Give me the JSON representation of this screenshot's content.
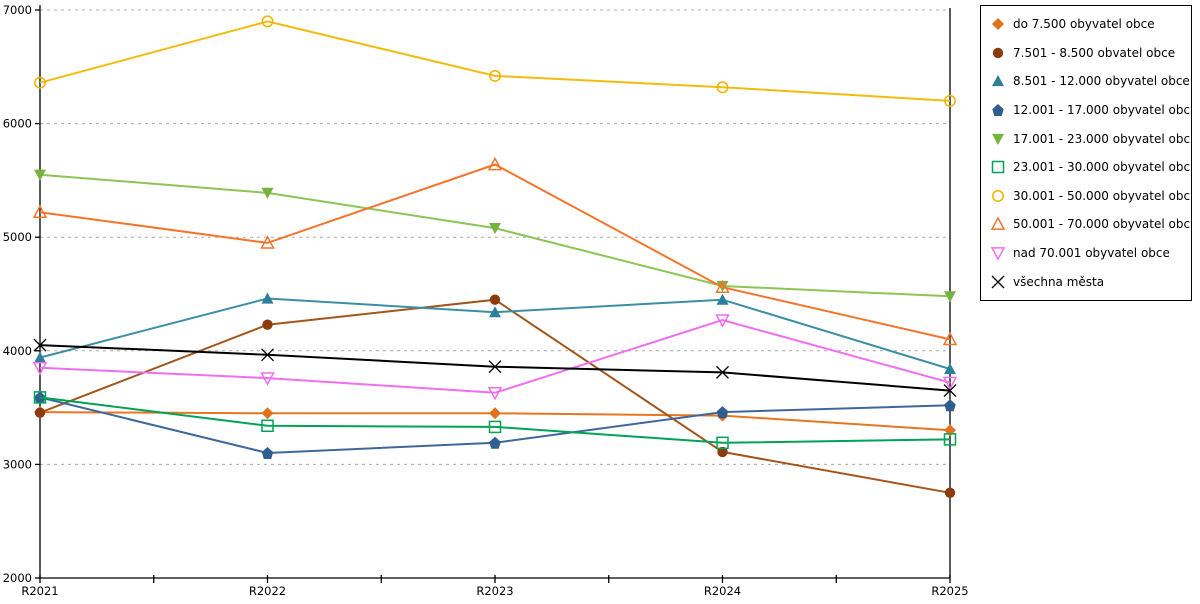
{
  "chart_data": {
    "type": "line",
    "title": "",
    "xlabel": "",
    "ylabel": "",
    "ylim": [
      2000,
      7000
    ],
    "ytick_step": 1000,
    "yticks": [
      "7000",
      "6000",
      "5000",
      "4000",
      "3000",
      "2000"
    ],
    "grid": "horizontal-dashed",
    "grid_color": "#ABABAB",
    "axis_color": "#000000",
    "legend_position": "top-right",
    "categories": [
      "R2021",
      "R2022",
      "R2023",
      "R2024",
      "R2025"
    ],
    "series": [
      {
        "name": "do 7.500 obyvatel obce",
        "marker": "diamond",
        "color": "#E8761E",
        "marker_color": "#E2711D",
        "values": [
          3460,
          3450,
          3450,
          3430,
          3300
        ]
      },
      {
        "name": "7.501 - 8.500 obvatel obce",
        "marker": "circle",
        "color": "#A4551C",
        "marker_color": "#8C3B0E",
        "values": [
          3455,
          4230,
          4450,
          3110,
          2750
        ]
      },
      {
        "name": "8.501 - 12.000 obyvatel obce",
        "marker": "triangle-up",
        "color": "#3B8EA5",
        "marker_color": "#2E7F99",
        "values": [
          3940,
          4460,
          4340,
          4450,
          3840
        ]
      },
      {
        "name": "12.001 - 17.000 obyvatel obc...",
        "marker": "pentagon",
        "color": "#3E6899",
        "marker_color": "#305E90",
        "values": [
          3590,
          3100,
          3190,
          3460,
          3520
        ]
      },
      {
        "name": "17.001 - 23.000 obyvatel obc...",
        "marker": "triangle-down",
        "color": "#8CC455",
        "marker_color": "#74B33E",
        "values": [
          5550,
          5390,
          5080,
          4570,
          4480
        ]
      },
      {
        "name": "23.001 - 30.000 obyvatel obc...",
        "marker": "square-open",
        "color": "#00A257",
        "marker_color": "#00A257",
        "values": [
          3590,
          3340,
          3330,
          3190,
          3220
        ]
      },
      {
        "name": "30.001 - 50.000 obyvatel obc...",
        "marker": "circle-open",
        "color": "#F2BC0F",
        "marker_color": "#F0B400",
        "values": [
          6360,
          6900,
          6420,
          6320,
          6200
        ]
      },
      {
        "name": "50.001 - 70.000 obyvatel obc...",
        "marker": "triangle-open",
        "color": "#F4742B",
        "marker_color": "#F4742B",
        "values": [
          5220,
          4950,
          5640,
          4560,
          4100
        ]
      },
      {
        "name": "nad 70.001 obyvatel obce",
        "marker": "triangle-down-open",
        "color": "#F06EF0",
        "marker_color": "#F06EF0",
        "values": [
          3850,
          3760,
          3630,
          4270,
          3720
        ]
      },
      {
        "name": "všechna města",
        "marker": "x",
        "color": "#000000",
        "marker_color": "#000000",
        "values": [
          4050,
          3965,
          3860,
          3810,
          3650
        ]
      }
    ]
  }
}
